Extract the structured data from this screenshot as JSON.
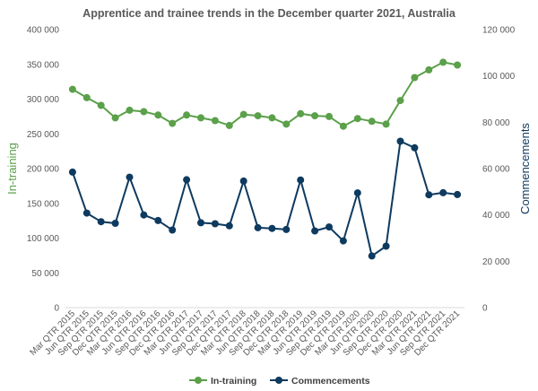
{
  "chart_data": {
    "type": "line",
    "title": "Apprentice and trainee trends in the December quarter 2021, Australia",
    "categories": [
      "Mar QTR 2015",
      "Jun QTR 2015",
      "Sep QTR 2015",
      "Dec QTR 2015",
      "Mar QTR 2016",
      "Jun QTR 2016",
      "Sep QTR 2016",
      "Dec QTR 2016",
      "Mar QTR 2017",
      "Jun QTR 2017",
      "Sep QTR 2017",
      "Dec QTR 2017",
      "Mar QTR 2018",
      "Jun QTR 2018",
      "Sep QTR 2018",
      "Dec QTR 2018",
      "Mar QTR 2019",
      "Jun QTR 2019",
      "Sep QTR 2019",
      "Dec QTR 2019",
      "Mar QTR 2020",
      "Jun QTR 2020",
      "Sep QTR 2020",
      "Dec QTR 2020",
      "Mar QTR 2021",
      "Jun QTR 2021",
      "Sep QTR 2021",
      "Dec QTR 2021"
    ],
    "ylabel_left": "In-training",
    "ylabel_right": "Commencements",
    "ylim_left": [
      0,
      400000
    ],
    "ylim_right": [
      0,
      120000
    ],
    "yticks_left": [
      "0",
      "50 000",
      "100 000",
      "150 000",
      "200 000",
      "250 000",
      "300 000",
      "350 000",
      "400 000"
    ],
    "yticks_right": [
      "0",
      "20 000",
      "40 000",
      "60 000",
      "80 000",
      "100 000",
      "120 000"
    ],
    "grid": false,
    "legend_position": "bottom",
    "series": [
      {
        "name": "In-training",
        "axis": "left",
        "color": "#5BA04A",
        "values": [
          314000,
          302000,
          291000,
          273000,
          284000,
          282000,
          277000,
          265000,
          277000,
          273000,
          269000,
          262000,
          278000,
          276000,
          273000,
          264000,
          279000,
          276000,
          275000,
          261000,
          272000,
          268000,
          264000,
          298000,
          331000,
          342000,
          353000,
          349000
        ]
      },
      {
        "name": "Commencements",
        "axis": "right",
        "color": "#0E3A5F",
        "values": [
          58500,
          40800,
          37100,
          36400,
          56300,
          40000,
          37600,
          33500,
          55200,
          36600,
          36200,
          35300,
          54600,
          34500,
          34200,
          33700,
          55100,
          33100,
          34800,
          28800,
          49500,
          22300,
          26500,
          71800,
          69000,
          48700,
          49600,
          48800
        ]
      }
    ]
  }
}
